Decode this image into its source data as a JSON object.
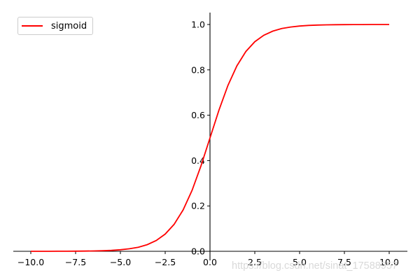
{
  "chart_data": {
    "type": "line",
    "title": "",
    "xlabel": "",
    "ylabel": "",
    "xlim": [
      -11,
      11
    ],
    "ylim": [
      0,
      1.05
    ],
    "grid": false,
    "legend_position": "upper left",
    "x_ticks": [
      -10.0,
      -7.5,
      -5.0,
      -2.5,
      0.0,
      2.5,
      5.0,
      7.5,
      10.0
    ],
    "x_tick_labels": [
      "−10.0",
      "−7.5",
      "−5.0",
      "−2.5",
      "0.0",
      "2.5",
      "5.0",
      "7.5",
      "10.0"
    ],
    "y_ticks": [
      0.0,
      0.2,
      0.4,
      0.6,
      0.8,
      1.0
    ],
    "y_tick_labels": [
      "0.0",
      "0.2",
      "0.4",
      "0.6",
      "0.8",
      "1.0"
    ],
    "spines": "centered at origin (left spine at x=0, bottom spine at y=0)",
    "series": [
      {
        "name": "sigmoid",
        "color": "#ff0000",
        "x": [
          -10,
          -9.5,
          -9,
          -8.5,
          -8,
          -7.5,
          -7,
          -6.5,
          -6,
          -5.5,
          -5,
          -4.5,
          -4,
          -3.5,
          -3,
          -2.5,
          -2,
          -1.5,
          -1,
          -0.5,
          0,
          0.5,
          1,
          1.5,
          2,
          2.5,
          3,
          3.5,
          4,
          4.5,
          5,
          5.5,
          6,
          6.5,
          7,
          7.5,
          8,
          8.5,
          9,
          9.5,
          10
        ],
        "values": [
          0.0,
          0.0001,
          0.0001,
          0.0002,
          0.0003,
          0.0006,
          0.0009,
          0.0015,
          0.0025,
          0.0041,
          0.0067,
          0.011,
          0.018,
          0.0293,
          0.0474,
          0.0759,
          0.1192,
          0.1824,
          0.2689,
          0.3775,
          0.5,
          0.6225,
          0.7311,
          0.8176,
          0.8808,
          0.9241,
          0.9526,
          0.9707,
          0.982,
          0.989,
          0.9933,
          0.9959,
          0.9975,
          0.9985,
          0.9991,
          0.9994,
          0.9997,
          0.9998,
          0.9999,
          0.9999,
          1.0
        ]
      }
    ]
  },
  "legend": {
    "label": "sigmoid",
    "color": "#ff0000"
  },
  "watermark": "https://blog.csdn.net/sinat_17588957"
}
